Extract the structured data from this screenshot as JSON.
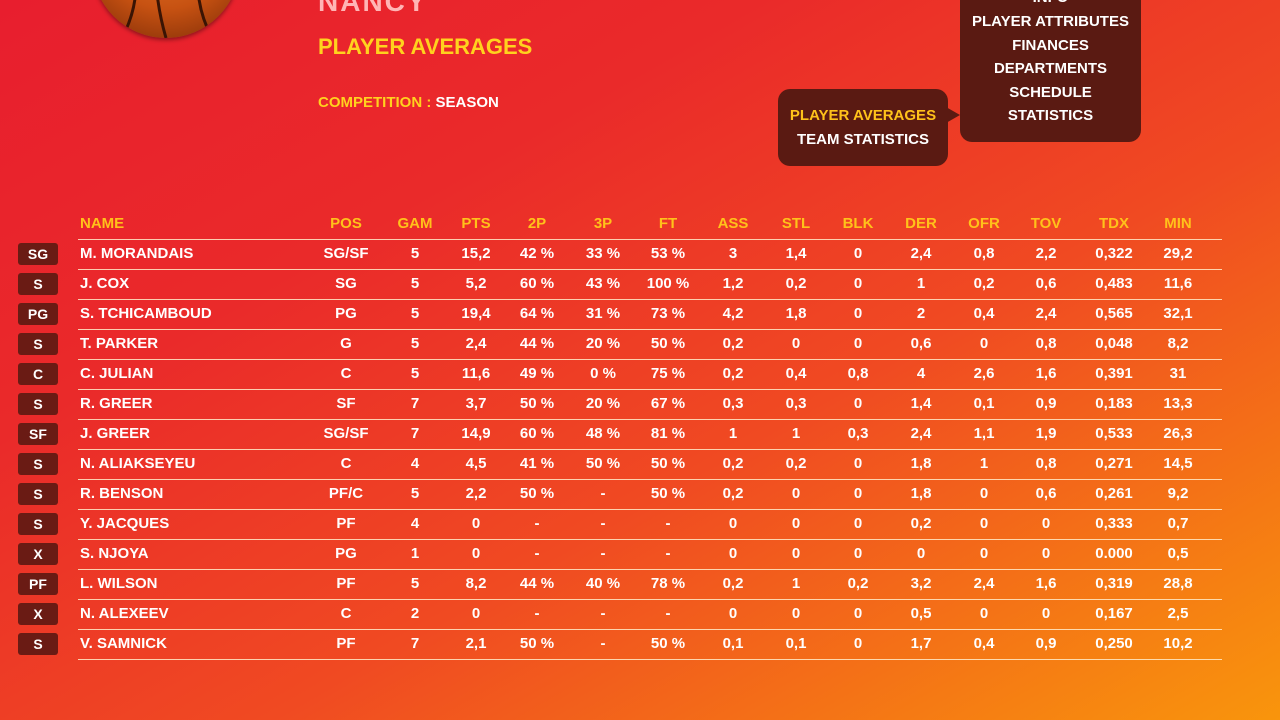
{
  "header": {
    "team_name": "NANCY",
    "page_title": "PLAYER AVERAGES",
    "competition_label": "COMPETITION : ",
    "competition_value": "SEASON"
  },
  "menu_main": {
    "items": [
      {
        "label": "INFO"
      },
      {
        "label": "PLAYER ATTRIBUTES"
      },
      {
        "label": "FINANCES"
      },
      {
        "label": "DEPARTMENTS"
      },
      {
        "label": "SCHEDULE"
      },
      {
        "label": "STATISTICS"
      }
    ]
  },
  "menu_sub": {
    "items": [
      {
        "label": "PLAYER AVERAGES",
        "active": true
      },
      {
        "label": "TEAM STATISTICS",
        "active": false
      }
    ]
  },
  "table": {
    "columns": [
      "NAME",
      "POS",
      "GAM",
      "PTS",
      "2P",
      "3P",
      "FT",
      "ASS",
      "STL",
      "BLK",
      "DER",
      "OFR",
      "TOV",
      "TDX",
      "MIN"
    ],
    "rows": [
      {
        "badge": "SG",
        "cells": [
          "M. MORANDAIS",
          "SG/SF",
          "5",
          "15,2",
          "42 %",
          "33 %",
          "53 %",
          "3",
          "1,4",
          "0",
          "2,4",
          "0,8",
          "2,2",
          "0,322",
          "29,2"
        ]
      },
      {
        "badge": "S",
        "cells": [
          "J. COX",
          "SG",
          "5",
          "5,2",
          "60 %",
          "43 %",
          "100 %",
          "1,2",
          "0,2",
          "0",
          "1",
          "0,2",
          "0,6",
          "0,483",
          "11,6"
        ]
      },
      {
        "badge": "PG",
        "cells": [
          "S. TCHICAMBOUD",
          "PG",
          "5",
          "19,4",
          "64 %",
          "31 %",
          "73 %",
          "4,2",
          "1,8",
          "0",
          "2",
          "0,4",
          "2,4",
          "0,565",
          "32,1"
        ]
      },
      {
        "badge": "S",
        "cells": [
          "T. PARKER",
          "G",
          "5",
          "2,4",
          "44 %",
          "20 %",
          "50 %",
          "0,2",
          "0",
          "0",
          "0,6",
          "0",
          "0,8",
          "0,048",
          "8,2"
        ]
      },
      {
        "badge": "C",
        "cells": [
          "C. JULIAN",
          "C",
          "5",
          "11,6",
          "49 %",
          "0 %",
          "75 %",
          "0,2",
          "0,4",
          "0,8",
          "4",
          "2,6",
          "1,6",
          "0,391",
          "31"
        ]
      },
      {
        "badge": "S",
        "cells": [
          "R. GREER",
          "SF",
          "7",
          "3,7",
          "50 %",
          "20 %",
          "67 %",
          "0,3",
          "0,3",
          "0",
          "1,4",
          "0,1",
          "0,9",
          "0,183",
          "13,3"
        ]
      },
      {
        "badge": "SF",
        "cells": [
          "J. GREER",
          "SG/SF",
          "7",
          "14,9",
          "60 %",
          "48 %",
          "81 %",
          "1",
          "1",
          "0,3",
          "2,4",
          "1,1",
          "1,9",
          "0,533",
          "26,3"
        ]
      },
      {
        "badge": "S",
        "cells": [
          "N. ALIAKSEYEU",
          "C",
          "4",
          "4,5",
          "41 %",
          "50 %",
          "50 %",
          "0,2",
          "0,2",
          "0",
          "1,8",
          "1",
          "0,8",
          "0,271",
          "14,5"
        ]
      },
      {
        "badge": "S",
        "cells": [
          "R. BENSON",
          "PF/C",
          "5",
          "2,2",
          "50 %",
          "-",
          "50 %",
          "0,2",
          "0",
          "0",
          "1,8",
          "0",
          "0,6",
          "0,261",
          "9,2"
        ]
      },
      {
        "badge": "S",
        "cells": [
          "Y. JACQUES",
          "PF",
          "4",
          "0",
          "-",
          "-",
          "-",
          "0",
          "0",
          "0",
          "0,2",
          "0",
          "0",
          "0,333",
          "0,7"
        ]
      },
      {
        "badge": "X",
        "cells": [
          "S. NJOYA",
          "PG",
          "1",
          "0",
          "-",
          "-",
          "-",
          "0",
          "0",
          "0",
          "0",
          "0",
          "0",
          "0.000",
          "0,5"
        ]
      },
      {
        "badge": "PF",
        "cells": [
          "L. WILSON",
          "PF",
          "5",
          "8,2",
          "44 %",
          "40 %",
          "78 %",
          "0,2",
          "1",
          "0,2",
          "3,2",
          "2,4",
          "1,6",
          "0,319",
          "28,8"
        ]
      },
      {
        "badge": "X",
        "cells": [
          "N. ALEXEEV",
          "C",
          "2",
          "0",
          "-",
          "-",
          "-",
          "0",
          "0",
          "0",
          "0,5",
          "0",
          "0",
          "0,167",
          "2,5"
        ]
      },
      {
        "badge": "S",
        "cells": [
          "V. SAMNICK",
          "PF",
          "7",
          "2,1",
          "50 %",
          "-",
          "50 %",
          "0,1",
          "0,1",
          "0",
          "1,7",
          "0,4",
          "0,9",
          "0,250",
          "10,2"
        ]
      }
    ]
  },
  "colors": {
    "accent_yellow": "#ffc21a",
    "menu_bg": "#5a1a12",
    "badge_bg": "#6a1b14"
  }
}
